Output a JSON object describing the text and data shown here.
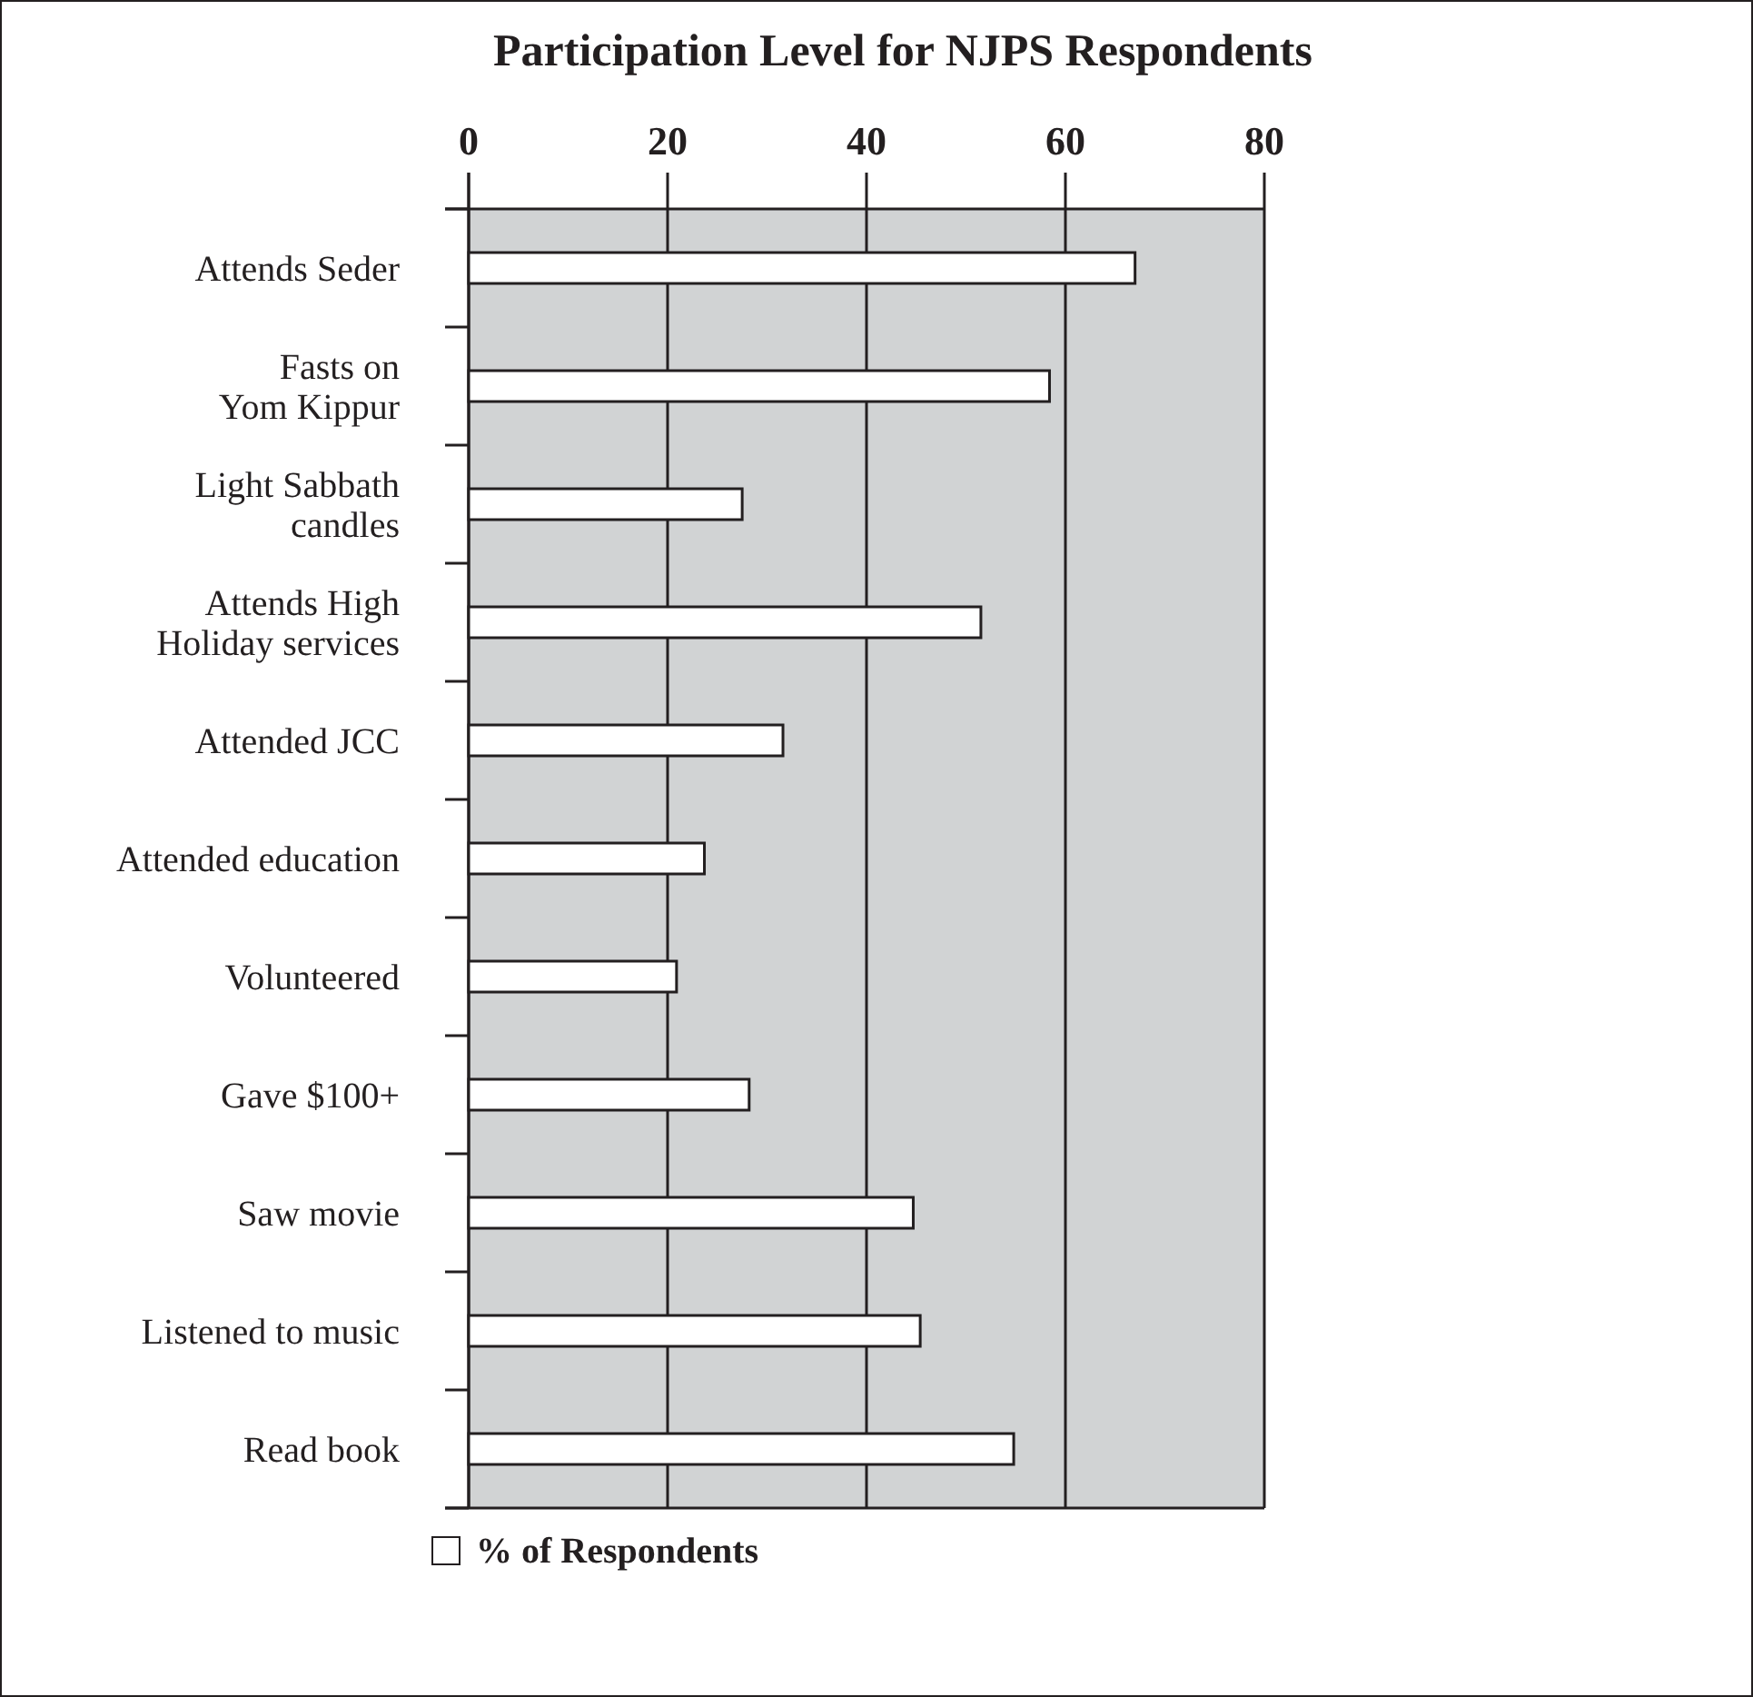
{
  "chart_data": {
    "type": "bar",
    "orientation": "horizontal",
    "title": "Participation Level for NJPS Respondents",
    "categories": [
      "Attends Seder",
      "Fasts on\nYom Kippur",
      "Light Sabbath\ncandles",
      "Attends High\nHoliday services",
      "Attended JCC",
      "Attended education",
      "Volunteered",
      "Gave $100+",
      "Saw movie",
      "Listened to music",
      "Read book"
    ],
    "series": [
      {
        "name": "% of Respondents",
        "color": "#ffffff",
        "values": [
          67,
          58.4,
          27.5,
          51.5,
          31.6,
          23.7,
          20.9,
          28.2,
          44.7,
          45.4,
          54.8
        ]
      }
    ],
    "xlim": [
      0,
      80
    ],
    "xticks": [
      0,
      20,
      40,
      60,
      80
    ],
    "grid": "x",
    "legend": "bottom"
  }
}
